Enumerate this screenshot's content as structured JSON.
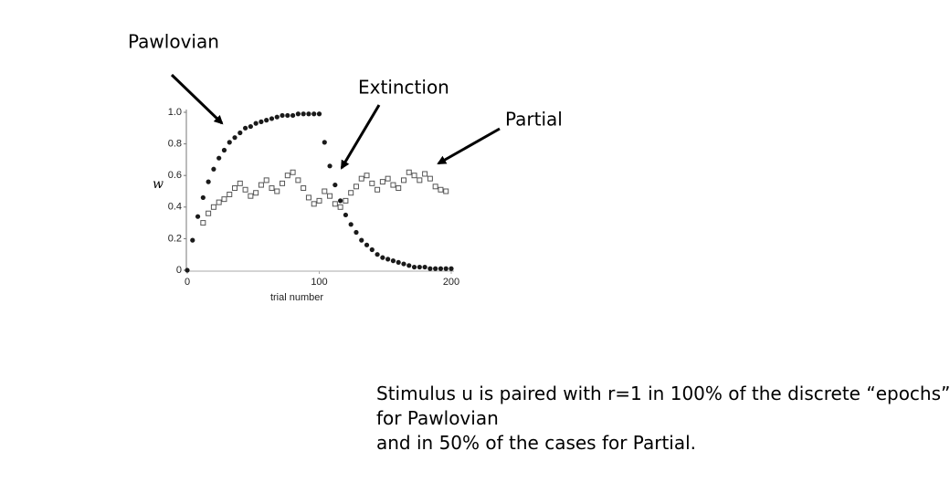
{
  "chart_data": {
    "type": "scatter",
    "annotations": [
      "Pawlovian",
      "Extinction",
      "Partial"
    ],
    "xlabel": "trial number",
    "ylabel": "w",
    "xlim": [
      0,
      200
    ],
    "xticks": [
      0,
      100,
      200
    ],
    "ylim": [
      0,
      1
    ],
    "yticks": [
      0,
      0.2,
      0.4,
      0.6,
      0.8,
      {
        "value": 1,
        "label": "1.0"
      }
    ],
    "series": [
      {
        "color": "#1a1a1a",
        "marker": "dot",
        "x": [
          0,
          4,
          8,
          12,
          16,
          20,
          24,
          28,
          32,
          36,
          40,
          44,
          48,
          52,
          56,
          60,
          64,
          68,
          72,
          76,
          80,
          84,
          88,
          92,
          96,
          100,
          104,
          108,
          112,
          116,
          120,
          124,
          128,
          132,
          136,
          140,
          144,
          148,
          152,
          156,
          160,
          164,
          168,
          172,
          176,
          180,
          184,
          188,
          192,
          196,
          200
        ],
        "values": [
          0,
          0.19,
          0.34,
          0.46,
          0.56,
          0.64,
          0.71,
          0.76,
          0.81,
          0.84,
          0.87,
          0.9,
          0.91,
          0.93,
          0.94,
          0.95,
          0.96,
          0.97,
          0.98,
          0.98,
          0.98,
          0.99,
          0.99,
          0.99,
          0.99,
          0.99,
          0.81,
          0.66,
          0.54,
          0.44,
          0.35,
          0.29,
          0.24,
          0.19,
          0.16,
          0.13,
          0.1,
          0.08,
          0.07,
          0.06,
          0.05,
          0.04,
          0.03,
          0.02,
          0.02,
          0.02,
          0.01,
          0.01,
          0.01,
          0.01,
          0.01
        ]
      },
      {
        "color": "#555555",
        "marker": "square",
        "x": [
          12,
          16,
          20,
          24,
          28,
          32,
          36,
          40,
          44,
          48,
          52,
          56,
          60,
          64,
          68,
          72,
          76,
          80,
          84,
          88,
          92,
          96,
          100,
          104,
          108,
          112,
          116,
          120,
          124,
          128,
          132,
          136,
          140,
          144,
          148,
          152,
          156,
          160,
          164,
          168,
          172,
          176,
          180,
          184,
          188,
          192,
          196
        ],
        "values": [
          0.3,
          0.36,
          0.4,
          0.43,
          0.45,
          0.48,
          0.52,
          0.55,
          0.51,
          0.47,
          0.49,
          0.54,
          0.57,
          0.52,
          0.5,
          0.55,
          0.6,
          0.62,
          0.57,
          0.52,
          0.46,
          0.42,
          0.44,
          0.5,
          0.47,
          0.42,
          0.4,
          0.44,
          0.49,
          0.53,
          0.58,
          0.6,
          0.55,
          0.51,
          0.56,
          0.58,
          0.54,
          0.52,
          0.57,
          0.62,
          0.6,
          0.57,
          0.61,
          0.58,
          0.53,
          0.51,
          0.5
        ]
      }
    ]
  },
  "caption": {
    "lines": [
      "Stimulus u is paired with r=1 in 100% of the discrete “epochs”",
      "for Pawlovian",
      "and in 50% of the cases for Partial."
    ]
  }
}
